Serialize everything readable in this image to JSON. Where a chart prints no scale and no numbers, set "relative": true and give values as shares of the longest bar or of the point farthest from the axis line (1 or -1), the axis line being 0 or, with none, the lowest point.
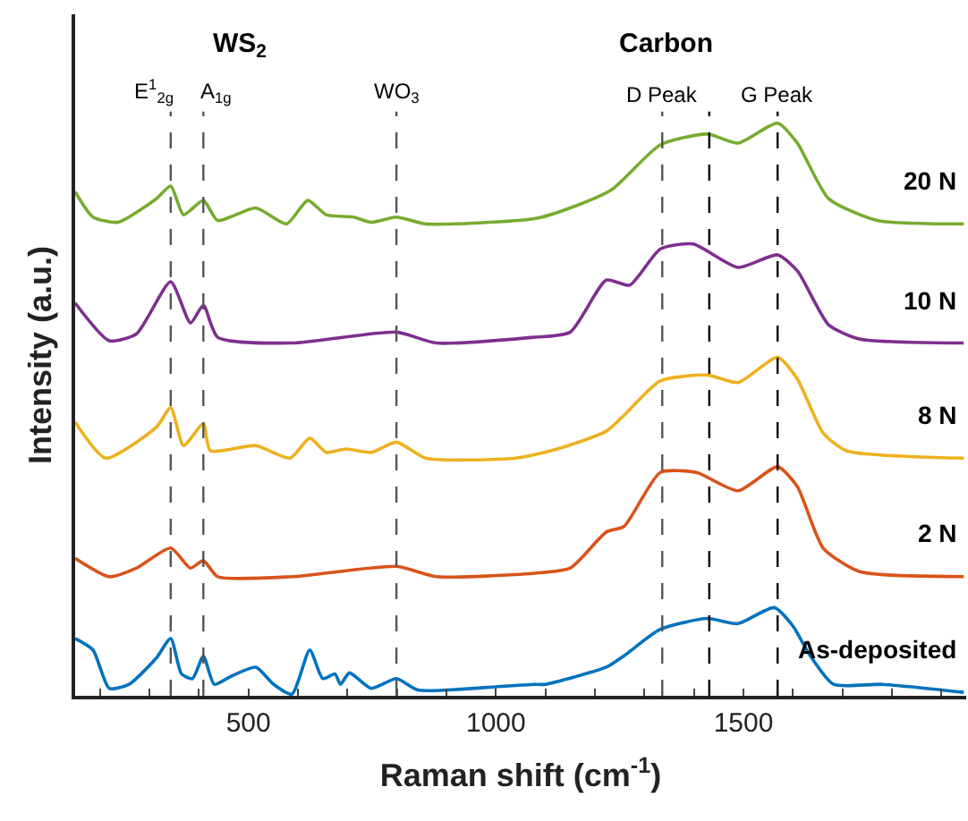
{
  "chart_data": {
    "type": "line",
    "relative": true,
    "xlabel": "Raman shift (cm$^{-1}$)",
    "ylabel": "Intensity (a.u.)",
    "xlim": [
      150,
      1950
    ],
    "xticks": [
      {
        "value": 200,
        "label": null
      },
      {
        "value": 300,
        "label": null
      },
      {
        "value": 400,
        "label": null
      },
      500,
      {
        "value": 600,
        "label": null
      },
      {
        "value": 700,
        "label": null
      },
      {
        "value": 800,
        "label": null
      },
      {
        "value": 900,
        "label": null
      },
      1000,
      {
        "value": 1100,
        "label": null
      },
      {
        "value": 1200,
        "label": null
      },
      {
        "value": 1300,
        "label": null
      },
      {
        "value": 1400,
        "label": null
      },
      1500,
      {
        "value": 1600,
        "label": null
      },
      {
        "value": 1700,
        "label": null
      },
      {
        "value": 1800,
        "label": null
      },
      {
        "value": 1900,
        "label": null
      }
    ],
    "legend": false,
    "tick_labels": "x",
    "line_style": "solid",
    "marker": "none",
    "series": [
      {
        "name": "As-deposited",
        "color": "#0072bd",
        "x": [
          150,
          186,
          219,
          259,
          314,
          343,
          365,
          387,
          409,
          431,
          467,
          515,
          551,
          588,
          624,
          650,
          675,
          686,
          704,
          748,
          799,
          843,
          1004,
          1077,
          1099,
          1223,
          1259,
          1332,
          1427,
          1489,
          1562,
          1599,
          1635,
          1682,
          1781,
          1945
        ],
        "values": [
          0.1,
          0.08,
          0.013,
          0.02,
          0.066,
          0.1,
          0.038,
          0.03,
          0.069,
          0.02,
          0.035,
          0.05,
          0.02,
          0.003,
          0.08,
          0.03,
          0.038,
          0.02,
          0.04,
          0.013,
          0.03,
          0.01,
          0.016,
          0.02,
          0.02,
          0.05,
          0.07,
          0.116,
          0.135,
          0.126,
          0.154,
          0.123,
          0.07,
          0.02,
          0.02,
          0.006
        ]
      },
      {
        "name": "2 N",
        "color": "#d95319",
        "x": [
          150,
          219,
          274,
          343,
          383,
          409,
          438,
          588,
          799,
          880,
          1077,
          1150,
          1223,
          1259,
          1332,
          1405,
          1489,
          1569,
          1609,
          1661,
          1734,
          1945
        ],
        "values": [
          0.24,
          0.208,
          0.223,
          0.258,
          0.223,
          0.236,
          0.208,
          0.208,
          0.226,
          0.208,
          0.214,
          0.223,
          0.286,
          0.296,
          0.39,
          0.39,
          0.358,
          0.4,
          0.365,
          0.258,
          0.217,
          0.208
        ]
      },
      {
        "name": "8 N",
        "color": "#edb120",
        "x": [
          150,
          212,
          314,
          343,
          369,
          409,
          423,
          515,
          584,
          624,
          657,
          697,
          748,
          799,
          858,
          1040,
          1124,
          1223,
          1259,
          1332,
          1427,
          1489,
          1569,
          1609,
          1661,
          1708,
          1945
        ],
        "values": [
          0.478,
          0.415,
          0.469,
          0.503,
          0.437,
          0.475,
          0.428,
          0.437,
          0.415,
          0.45,
          0.425,
          0.431,
          0.425,
          0.443,
          0.415,
          0.415,
          0.431,
          0.462,
          0.49,
          0.55,
          0.56,
          0.547,
          0.591,
          0.553,
          0.459,
          0.428,
          0.415
        ]
      },
      {
        "name": "10 N",
        "color": "#7e2f8e",
        "x": [
          150,
          219,
          274,
          343,
          383,
          409,
          438,
          588,
          799,
          880,
          1077,
          1150,
          1223,
          1270,
          1332,
          1398,
          1489,
          1569,
          1609,
          1672,
          1734,
          1945
        ],
        "values": [
          0.686,
          0.62,
          0.632,
          0.723,
          0.651,
          0.682,
          0.626,
          0.616,
          0.635,
          0.616,
          0.626,
          0.635,
          0.726,
          0.717,
          0.78,
          0.789,
          0.748,
          0.77,
          0.742,
          0.648,
          0.623,
          0.616
        ]
      },
      {
        "name": "20 N",
        "color": "#77ac30",
        "x": [
          150,
          186,
          237,
          314,
          343,
          369,
          409,
          438,
          515,
          577,
          620,
          657,
          712,
          748,
          799,
          858,
          1077,
          1150,
          1234,
          1332,
          1427,
          1489,
          1569,
          1609,
          1672,
          1770,
          1945
        ],
        "values": [
          0.88,
          0.836,
          0.827,
          0.868,
          0.89,
          0.84,
          0.865,
          0.83,
          0.852,
          0.824,
          0.865,
          0.84,
          0.836,
          0.827,
          0.836,
          0.824,
          0.833,
          0.852,
          0.884,
          0.962,
          0.981,
          0.965,
          1,
          0.965,
          0.868,
          0.83,
          0.824
        ]
      }
    ],
    "ref_lines": [
      {
        "axis": "x",
        "value": 343,
        "label": "E$^{1}$$_{2g}$",
        "color": "#555555",
        "line_style": "dashed"
      },
      {
        "axis": "x",
        "value": 409,
        "label": "A$_{1g}$",
        "color": "#555555",
        "line_style": "dashed"
      },
      {
        "axis": "x",
        "value": 799,
        "label": "WO$_{3}$",
        "color": "#555555",
        "line_style": "dashed"
      },
      {
        "axis": "x",
        "value": 1336,
        "label": "D Peak",
        "color": "#555555",
        "line_style": "dashed"
      },
      {
        "axis": "x",
        "value": 1431,
        "label": null,
        "color": "#000000",
        "line_style": "dashed"
      },
      {
        "axis": "x",
        "value": 1569,
        "label": "G Peak",
        "color": "#000000",
        "line_style": "dashed"
      }
    ],
    "annotations": [
      "WS$_{2}$",
      "Carbon"
    ]
  }
}
